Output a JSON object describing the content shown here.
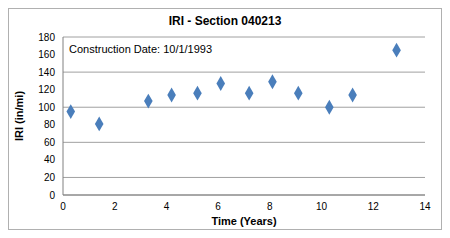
{
  "chart_data": {
    "type": "scatter",
    "title": "IRI - Section 040213",
    "annotations": [
      "Construction Date: 10/1/1993"
    ],
    "x_label": "Time (Years)",
    "y_label": "IRI (in/mi)",
    "x": [
      0.3,
      1.4,
      3.3,
      4.2,
      5.2,
      6.1,
      7.2,
      8.1,
      9.1,
      10.3,
      11.2,
      12.9
    ],
    "values": [
      95,
      81,
      107,
      114,
      116,
      127,
      116,
      129,
      116,
      100,
      114,
      165
    ],
    "color": "#4a7ebb",
    "marker": "diamond",
    "xlim": [
      0,
      14
    ],
    "ylim": [
      0,
      180
    ],
    "xticks": [
      0,
      2,
      4,
      6,
      8,
      10,
      12,
      14
    ],
    "yticks": [
      0,
      20,
      40,
      60,
      80,
      100,
      120,
      140,
      160,
      180
    ],
    "grid": true
  }
}
